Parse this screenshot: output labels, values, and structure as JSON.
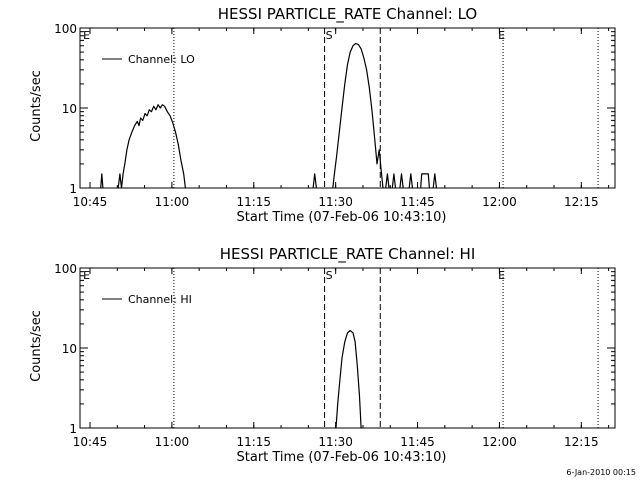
{
  "footer_stamp": "6-Jan-2010 00:15",
  "chart_data": [
    {
      "type": "line",
      "title": "HESSI PARTICLE_RATE Channel: LO",
      "xlabel": "Start Time (07-Feb-06 10:43:10)",
      "ylabel": "Counts/sec",
      "y_scale": "log",
      "ylim": [
        1,
        100
      ],
      "xlim_minutes": [
        0,
        98
      ],
      "x_ticks": [
        "10:45",
        "11:00",
        "11:15",
        "11:30",
        "11:45",
        "12:00",
        "12:15"
      ],
      "x_tick_minutes": [
        1.83,
        16.83,
        31.83,
        46.83,
        61.83,
        76.83,
        91.83
      ],
      "y_ticks": [
        "1",
        "10",
        "100"
      ],
      "y_tick_values": [
        1,
        10,
        100
      ],
      "legend": "Channel: LO",
      "legend_position": "top-left",
      "dotted_lines_minutes": [
        17.2,
        77.5,
        94.9
      ],
      "dashed_lines_minutes": [
        44.8,
        55.0
      ],
      "markers": [
        {
          "label": "E",
          "minute": 0.4
        },
        {
          "label": "S",
          "minute": 44.8
        },
        {
          "label": "E",
          "minute": 76.4
        }
      ],
      "series": [
        {
          "name": "Channel: LO",
          "segments": [
            [
              [
                3.8,
                1
              ],
              [
                4.0,
                1.5
              ],
              [
                4.2,
                1
              ]
            ],
            [
              [
                7.0,
                1
              ],
              [
                7.3,
                1.5
              ],
              [
                7.6,
                1
              ],
              [
                7.9,
                1.5
              ],
              [
                8.2,
                2.0
              ],
              [
                8.6,
                3.0
              ],
              [
                9.0,
                4.0
              ],
              [
                9.5,
                5.0
              ],
              [
                10.0,
                6.0
              ],
              [
                10.5,
                6.8
              ],
              [
                10.8,
                6.0
              ],
              [
                11.1,
                7.5
              ],
              [
                11.5,
                7.0
              ],
              [
                11.9,
                8.5
              ],
              [
                12.3,
                8.0
              ],
              [
                12.7,
                9.5
              ],
              [
                13.1,
                9.0
              ],
              [
                13.5,
                10.5
              ],
              [
                13.9,
                9.5
              ],
              [
                14.3,
                11.0
              ],
              [
                14.7,
                10.0
              ],
              [
                15.1,
                11.0
              ],
              [
                15.5,
                10.5
              ],
              [
                16.0,
                9.0
              ],
              [
                16.5,
                8.0
              ],
              [
                17.0,
                6.5
              ],
              [
                17.5,
                5.0
              ],
              [
                18.0,
                3.5
              ],
              [
                18.5,
                2.2
              ],
              [
                19.0,
                1.5
              ],
              [
                19.3,
                1
              ]
            ],
            [
              [
                42.7,
                1
              ],
              [
                43.0,
                1.5
              ],
              [
                43.3,
                1
              ]
            ],
            [
              [
                46.3,
                1
              ],
              [
                46.6,
                1.5
              ],
              [
                47.0,
                2.5
              ],
              [
                47.5,
                5.0
              ],
              [
                48.0,
                10.0
              ],
              [
                48.5,
                20.0
              ],
              [
                49.0,
                35.0
              ],
              [
                49.5,
                50.0
              ],
              [
                50.0,
                60.0
              ],
              [
                50.5,
                64.0
              ],
              [
                51.0,
                62.0
              ],
              [
                51.5,
                55.0
              ],
              [
                52.0,
                42.0
              ],
              [
                52.5,
                30.0
              ],
              [
                53.0,
                18.0
              ],
              [
                53.5,
                9.0
              ],
              [
                54.0,
                4.0
              ],
              [
                54.4,
                2.0
              ],
              [
                54.8,
                3.0
              ],
              [
                55.2,
                1.6
              ],
              [
                55.5,
                1
              ]
            ],
            [
              [
                56.0,
                1
              ],
              [
                56.3,
                1.5
              ],
              [
                56.6,
                1
              ]
            ],
            [
              [
                57.2,
                1
              ],
              [
                57.5,
                1.5
              ],
              [
                57.8,
                1
              ]
            ],
            [
              [
                58.6,
                1
              ],
              [
                58.9,
                1.5
              ],
              [
                59.2,
                1
              ]
            ],
            [
              [
                60.3,
                1
              ],
              [
                60.6,
                1.5
              ],
              [
                60.9,
                1
              ]
            ],
            [
              [
                62.4,
                1
              ],
              [
                62.6,
                1.5
              ],
              [
                63.8,
                1.5
              ],
              [
                64.0,
                1
              ]
            ],
            [
              [
                64.7,
                1
              ],
              [
                65.0,
                1.5
              ],
              [
                65.3,
                1
              ]
            ]
          ]
        }
      ]
    },
    {
      "type": "line",
      "title": "HESSI PARTICLE_RATE Channel: HI",
      "xlabel": "Start Time (07-Feb-06 10:43:10)",
      "ylabel": "Counts/sec",
      "y_scale": "log",
      "ylim": [
        1,
        100
      ],
      "xlim_minutes": [
        0,
        98
      ],
      "x_ticks": [
        "10:45",
        "11:00",
        "11:15",
        "11:30",
        "11:45",
        "12:00",
        "12:15"
      ],
      "x_tick_minutes": [
        1.83,
        16.83,
        31.83,
        46.83,
        61.83,
        76.83,
        91.83
      ],
      "y_ticks": [
        "1",
        "10",
        "100"
      ],
      "y_tick_values": [
        1,
        10,
        100
      ],
      "legend": "Channel: HI",
      "legend_position": "top-left",
      "dotted_lines_minutes": [
        17.2,
        77.5,
        94.9
      ],
      "dashed_lines_minutes": [
        44.8,
        55.0
      ],
      "markers": [
        {
          "label": "E",
          "minute": 0.4
        },
        {
          "label": "S",
          "minute": 44.8
        },
        {
          "label": "E",
          "minute": 76.4
        }
      ],
      "series": [
        {
          "name": "Channel: HI",
          "segments": [
            [
              [
                46.9,
                1
              ],
              [
                47.2,
                2.0
              ],
              [
                47.6,
                4.0
              ],
              [
                48.0,
                7.5
              ],
              [
                48.5,
                12.0
              ],
              [
                49.0,
                15.5
              ],
              [
                49.5,
                16.5
              ],
              [
                50.0,
                15.5
              ],
              [
                50.4,
                12.0
              ],
              [
                50.8,
                6.0
              ],
              [
                51.2,
                2.5
              ],
              [
                51.5,
                1
              ]
            ]
          ]
        }
      ]
    }
  ]
}
